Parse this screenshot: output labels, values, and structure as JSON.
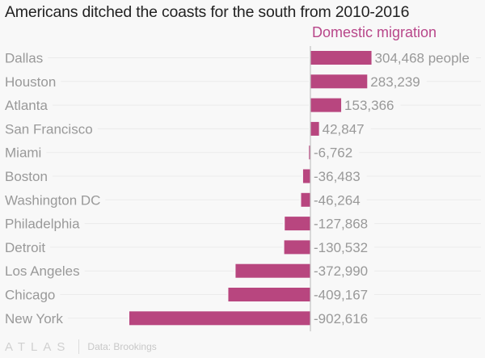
{
  "chart_data": {
    "type": "bar",
    "orientation": "horizontal",
    "title": "Americans ditched the coasts for the south from 2010-2016",
    "series_name": "Domestic migration",
    "categories": [
      "Dallas",
      "Houston",
      "Atlanta",
      "San Francisco",
      "Miami",
      "Boston",
      "Washington DC",
      "Philadelphia",
      "Detroit",
      "Los Angeles",
      "Chicago",
      "New York"
    ],
    "values": [
      304468,
      283239,
      153366,
      42847,
      -6762,
      -36483,
      -46264,
      -127868,
      -130532,
      -372990,
      -409167,
      -902616
    ],
    "value_labels": [
      "304,468 people",
      "283,239",
      "153,366",
      "42,847",
      "-6,762",
      "-36,483",
      "-46,264",
      "-127,868",
      "-130,532",
      "-372,990",
      "-409,167",
      "-902,616"
    ],
    "xlim": [
      -902616,
      304468
    ],
    "xlabel": "",
    "ylabel": "",
    "grid": true,
    "bar_color": "#b8467f"
  },
  "footer": {
    "logo": "ATLAS",
    "source": "Data: Brookings"
  }
}
